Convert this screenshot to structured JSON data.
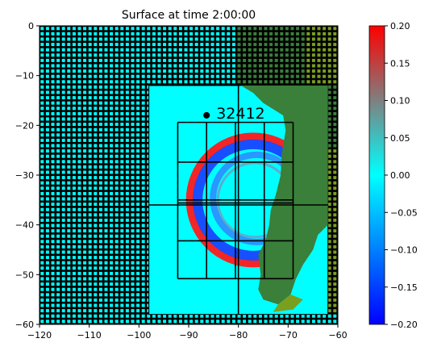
{
  "chart_data": {
    "type": "heatmap",
    "title": "Surface at time 2:00:00",
    "xlim": [
      -120,
      -60
    ],
    "ylim": [
      -60,
      0
    ],
    "x_ticks": [
      -120,
      -110,
      -100,
      -90,
      -80,
      -70,
      -60
    ],
    "y_ticks": [
      0,
      -10,
      -20,
      -30,
      -40,
      -50,
      -60
    ],
    "colorbar": {
      "range": [
        -0.2,
        0.2
      ],
      "ticks": [
        0.2,
        0.15,
        0.1,
        0.05,
        0.0,
        -0.05,
        -0.1,
        -0.15,
        -0.2
      ],
      "tick_labels": [
        "0.20",
        "0.15",
        "0.10",
        "0.05",
        "0.00",
        "−0.05",
        "−0.10",
        "−0.15",
        "−0.20"
      ],
      "colors": [
        "#0000ff",
        "#00ffff",
        "#ff0000"
      ]
    },
    "gauge": {
      "label": "32412",
      "x": -86.4,
      "y": -17.98
    },
    "fine_region": {
      "x": [
        -98,
        -62
      ],
      "y": [
        -58,
        -12
      ]
    },
    "inner_grid": {
      "x": [
        -92.2,
        -86.4,
        -80.6,
        -74.8,
        -69
      ],
      "y": [
        -19.4,
        -27.4,
        -35,
        -35.6,
        -43.2,
        -50.8
      ]
    },
    "front_center": [
      -77,
      -35
    ],
    "front_radius": 12,
    "colors": {
      "water": "#00ffff",
      "land": "#3a7f3a",
      "land_light": "#7a9f1f",
      "grid": "#000000"
    },
    "tick_labels": {
      "x": [
        "−120",
        "−110",
        "−100",
        "−90",
        "−80",
        "−70",
        "−60"
      ],
      "y": [
        "0",
        "−10",
        "−20",
        "−30",
        "−40",
        "−50",
        "−60"
      ]
    }
  }
}
